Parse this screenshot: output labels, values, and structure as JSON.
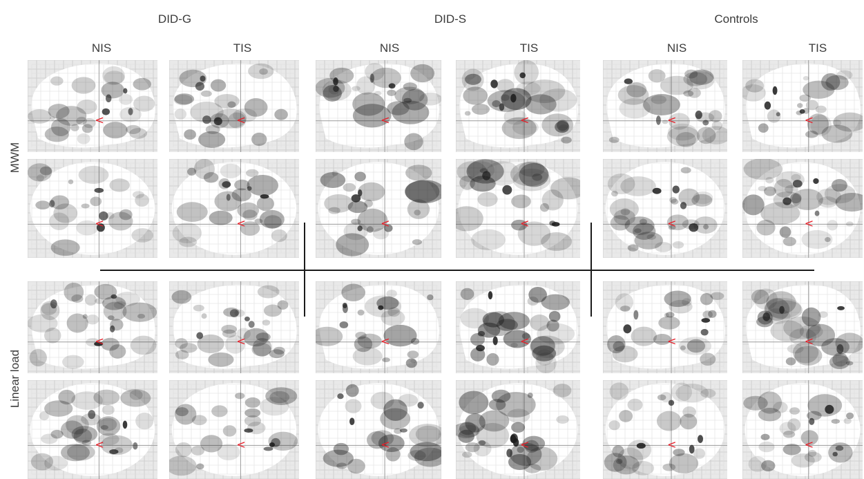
{
  "groups": [
    {
      "name": "DID-G",
      "conditions": [
        "NIS",
        "TIS"
      ]
    },
    {
      "name": "DID-S",
      "conditions": [
        "NIS",
        "TIS"
      ]
    },
    {
      "name": "Controls",
      "conditions": [
        "NIS",
        "TIS"
      ]
    }
  ],
  "rows": [
    {
      "label": "MWM"
    },
    {
      "label": "Linear load"
    }
  ],
  "marker": {
    "glyph": "<",
    "color": "#e8202a"
  },
  "colors": {
    "grid_bg": "#e9e9e9",
    "grid_line": "#c8c8c8",
    "brain_fill": "#ffffff",
    "activation": "#1c1c1c",
    "divider": "#1a1a1a"
  }
}
